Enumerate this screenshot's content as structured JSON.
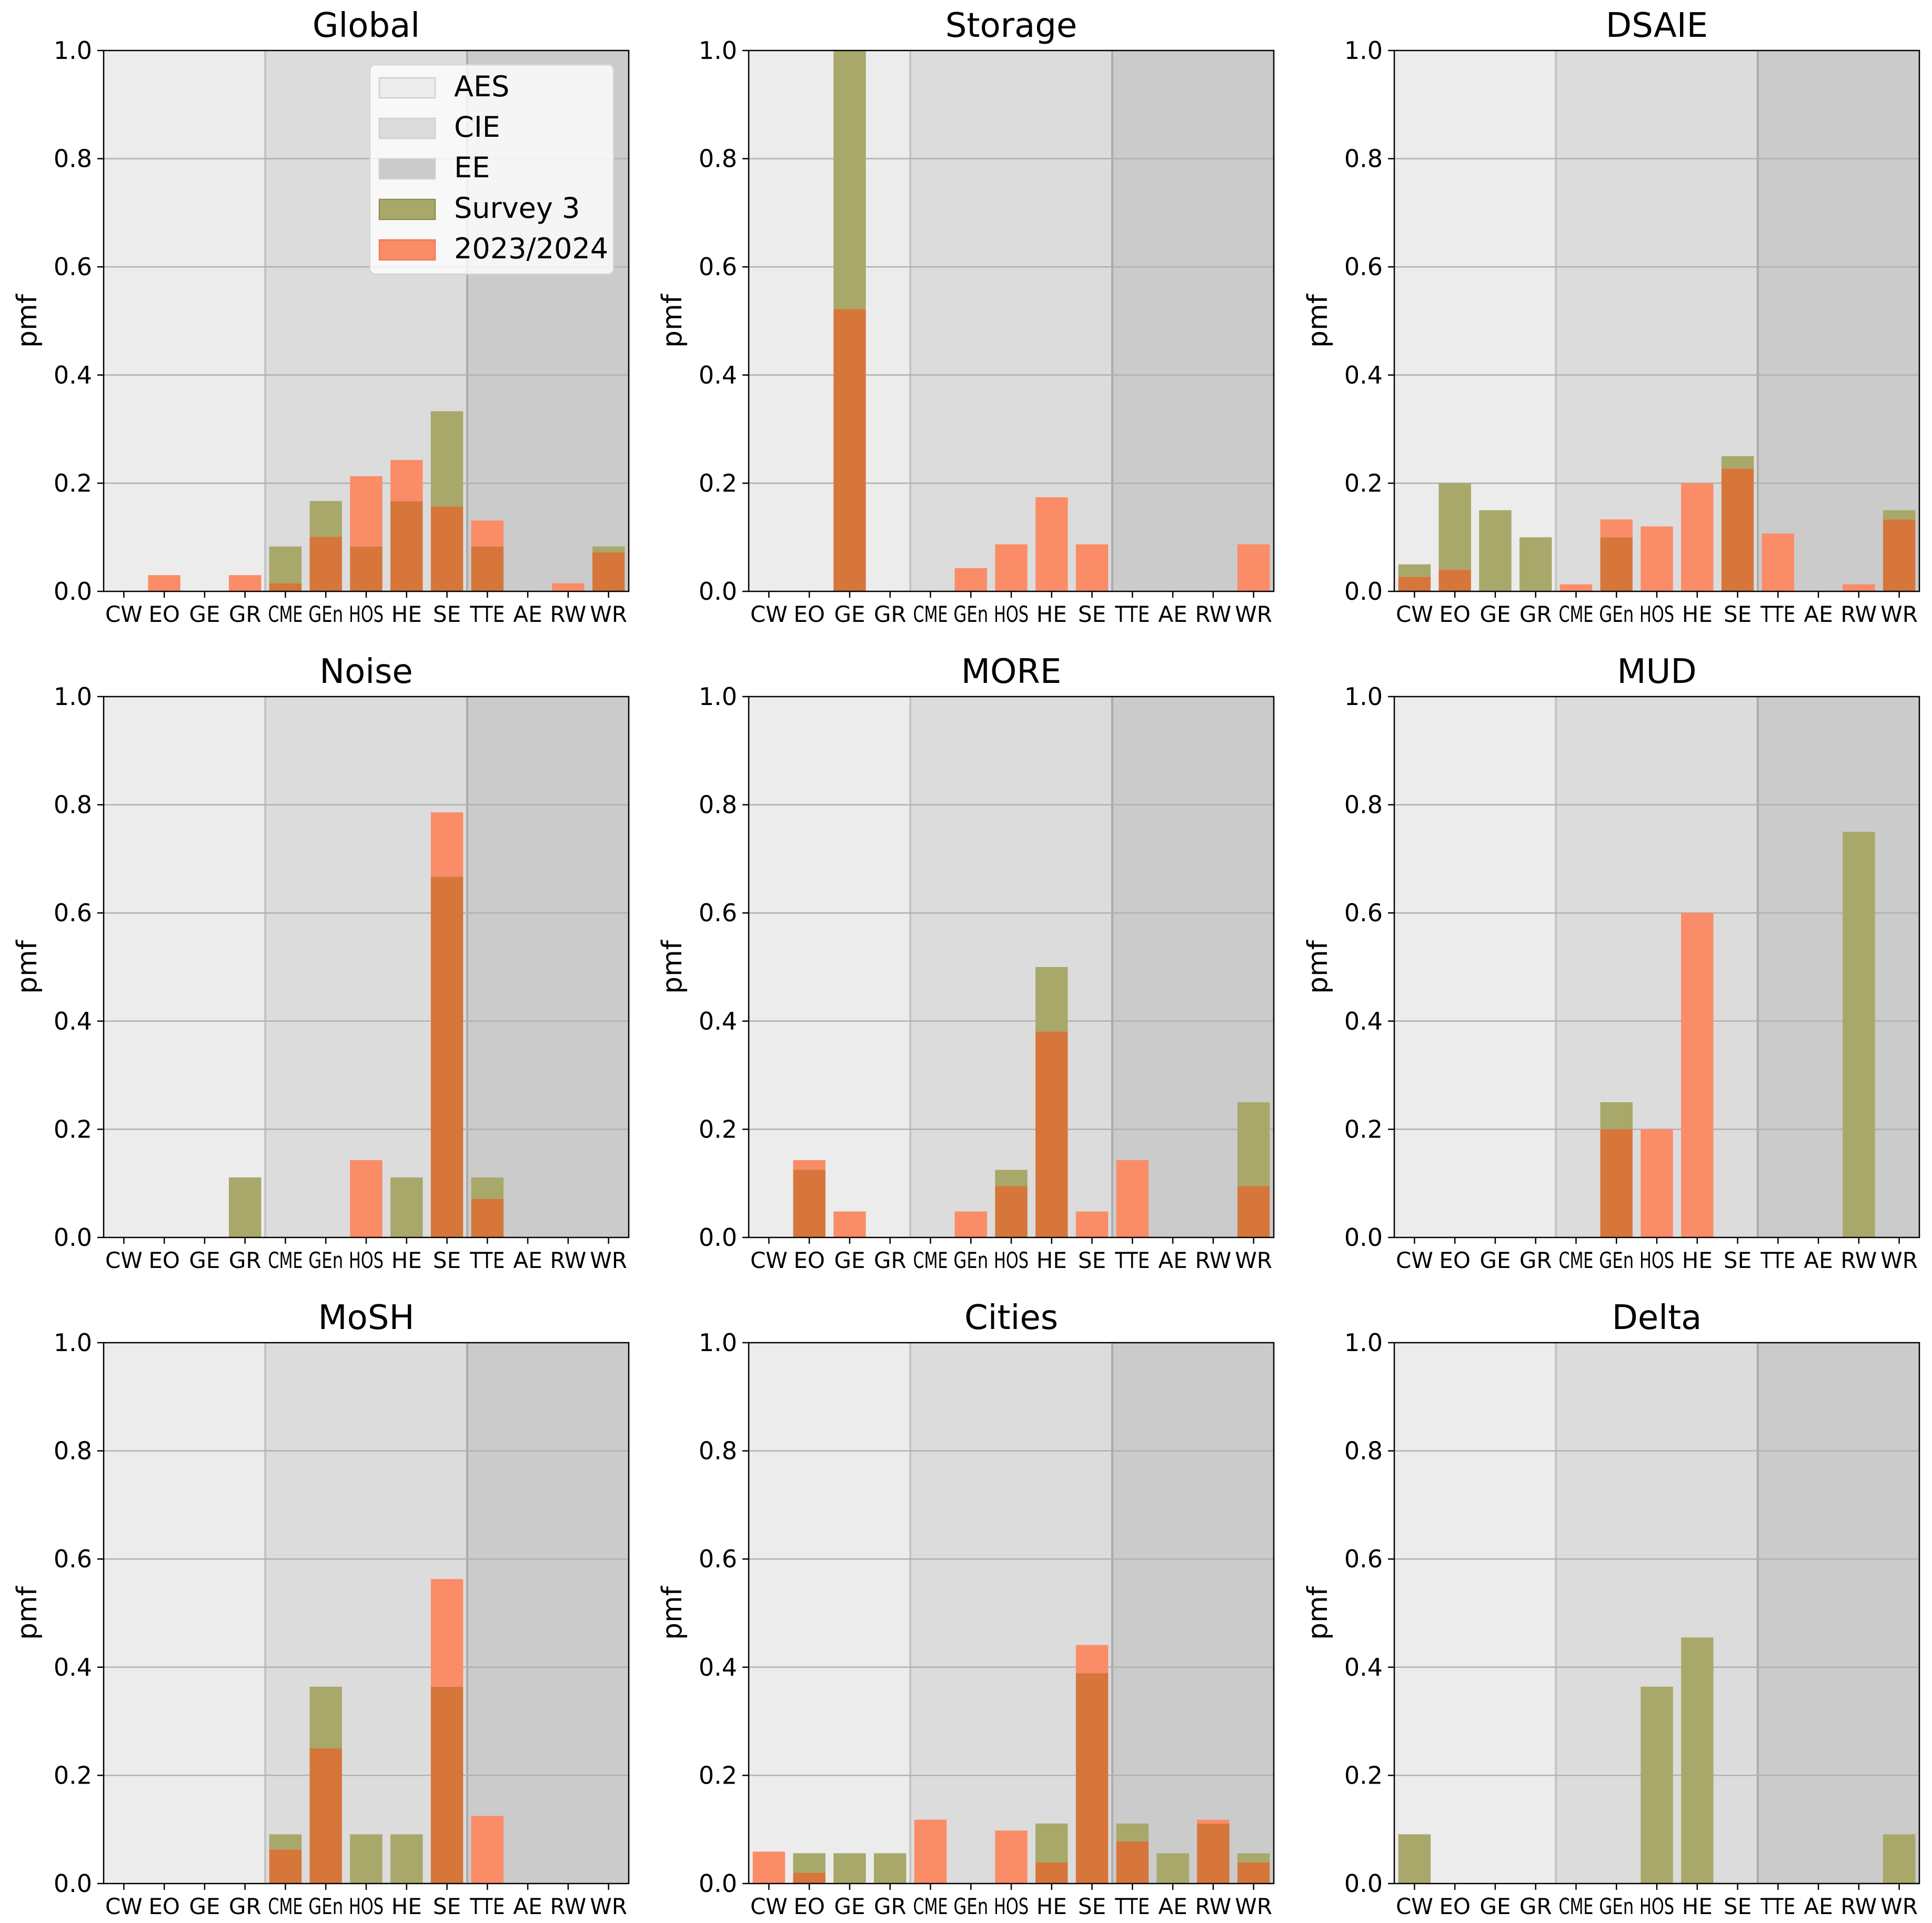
{
  "figure": {
    "ylabel": "pmf",
    "yticks": [
      "0.0",
      "0.2",
      "0.4",
      "0.6",
      "0.8",
      "1.0"
    ],
    "categories": [
      "CW",
      "EO",
      "GE",
      "GR",
      "CME",
      "GEn",
      "HOS",
      "HE",
      "SE",
      "TTE",
      "AE",
      "RW",
      "WR"
    ],
    "groups": [
      {
        "name": "AES",
        "color": "#ececec"
      },
      {
        "name": "CIE",
        "color": "#dcdcdc"
      },
      {
        "name": "EE",
        "color": "#cbcbcb"
      }
    ],
    "series_colors": {
      "Survey 3": "#a8a86a",
      "2023/2024": "#fb8c68",
      "overlap": "#d6763b"
    },
    "legend": {
      "placement": "upper right of Global panel",
      "entries": [
        "AES",
        "CIE",
        "EE",
        "Survey 3",
        "2023/2024"
      ]
    }
  },
  "chart_data": [
    {
      "type": "bar",
      "title": "Global",
      "ylabel": "pmf",
      "ylim": [
        0,
        1
      ],
      "categories": [
        "CW",
        "EO",
        "GE",
        "GR",
        "CME",
        "GEn",
        "HOS",
        "HE",
        "SE",
        "TTE",
        "AE",
        "RW",
        "WR"
      ],
      "series": [
        {
          "name": "Survey 3",
          "values": [
            0,
            0,
            0,
            0,
            0.083,
            0.167,
            0.083,
            0.167,
            0.333,
            0.083,
            0,
            0,
            0.083
          ]
        },
        {
          "name": "2023/2024",
          "values": [
            0,
            0.03,
            0,
            0.03,
            0.015,
            0.101,
            0.213,
            0.243,
            0.157,
            0.131,
            0,
            0.015,
            0.072
          ]
        }
      ]
    },
    {
      "type": "bar",
      "title": "Storage",
      "ylabel": "pmf",
      "ylim": [
        0,
        1
      ],
      "categories": [
        "CW",
        "EO",
        "GE",
        "GR",
        "CME",
        "GEn",
        "HOS",
        "HE",
        "SE",
        "TTE",
        "AE",
        "RW",
        "WR"
      ],
      "series": [
        {
          "name": "Survey 3",
          "values": [
            0,
            0,
            1.0,
            0,
            0,
            0,
            0,
            0,
            0,
            0,
            0,
            0,
            0
          ]
        },
        {
          "name": "2023/2024",
          "values": [
            0,
            0,
            0.522,
            0,
            0,
            0.043,
            0.087,
            0.174,
            0.087,
            0,
            0,
            0,
            0.087
          ]
        }
      ]
    },
    {
      "type": "bar",
      "title": "DSAIE",
      "ylabel": "pmf",
      "ylim": [
        0,
        1
      ],
      "categories": [
        "CW",
        "EO",
        "GE",
        "GR",
        "CME",
        "GEn",
        "HOS",
        "HE",
        "SE",
        "TTE",
        "AE",
        "RW",
        "WR"
      ],
      "series": [
        {
          "name": "Survey 3",
          "values": [
            0.05,
            0.2,
            0.15,
            0.1,
            0,
            0.1,
            0,
            0,
            0.25,
            0,
            0,
            0,
            0.15
          ]
        },
        {
          "name": "2023/2024",
          "values": [
            0.027,
            0.04,
            0,
            0,
            0.013,
            0.133,
            0.12,
            0.2,
            0.227,
            0.107,
            0,
            0.013,
            0.133
          ]
        }
      ]
    },
    {
      "type": "bar",
      "title": "Noise",
      "ylabel": "pmf",
      "ylim": [
        0,
        1
      ],
      "categories": [
        "CW",
        "EO",
        "GE",
        "GR",
        "CME",
        "GEn",
        "HOS",
        "HE",
        "SE",
        "TTE",
        "AE",
        "RW",
        "WR"
      ],
      "series": [
        {
          "name": "Survey 3",
          "values": [
            0,
            0,
            0,
            0.111,
            0,
            0,
            0,
            0.111,
            0.667,
            0.111,
            0,
            0,
            0
          ]
        },
        {
          "name": "2023/2024",
          "values": [
            0,
            0,
            0,
            0,
            0,
            0,
            0.143,
            0,
            0.786,
            0.071,
            0,
            0,
            0
          ]
        }
      ]
    },
    {
      "type": "bar",
      "title": "MORE",
      "ylabel": "pmf",
      "ylim": [
        0,
        1
      ],
      "categories": [
        "CW",
        "EO",
        "GE",
        "GR",
        "CME",
        "GEn",
        "HOS",
        "HE",
        "SE",
        "TTE",
        "AE",
        "RW",
        "WR"
      ],
      "series": [
        {
          "name": "Survey 3",
          "values": [
            0,
            0.125,
            0,
            0,
            0,
            0,
            0.125,
            0.5,
            0,
            0,
            0,
            0,
            0.25
          ]
        },
        {
          "name": "2023/2024",
          "values": [
            0,
            0.143,
            0.048,
            0,
            0,
            0.048,
            0.095,
            0.381,
            0.048,
            0.143,
            0,
            0,
            0.095
          ]
        }
      ]
    },
    {
      "type": "bar",
      "title": "MUD",
      "ylabel": "pmf",
      "ylim": [
        0,
        1
      ],
      "categories": [
        "CW",
        "EO",
        "GE",
        "GR",
        "CME",
        "GEn",
        "HOS",
        "HE",
        "SE",
        "TTE",
        "AE",
        "RW",
        "WR"
      ],
      "series": [
        {
          "name": "Survey 3",
          "values": [
            0,
            0,
            0,
            0,
            0,
            0.25,
            0,
            0,
            0,
            0,
            0,
            0.75,
            0
          ]
        },
        {
          "name": "2023/2024",
          "values": [
            0,
            0,
            0,
            0,
            0,
            0.2,
            0.2,
            0.6,
            0,
            0,
            0,
            0,
            0
          ]
        }
      ]
    },
    {
      "type": "bar",
      "title": "MoSH",
      "ylabel": "pmf",
      "ylim": [
        0,
        1
      ],
      "categories": [
        "CW",
        "EO",
        "GE",
        "GR",
        "CME",
        "GEn",
        "HOS",
        "HE",
        "SE",
        "TTE",
        "AE",
        "RW",
        "WR"
      ],
      "series": [
        {
          "name": "Survey 3",
          "values": [
            0,
            0,
            0,
            0,
            0.091,
            0.364,
            0.091,
            0.091,
            0.364,
            0,
            0,
            0,
            0
          ]
        },
        {
          "name": "2023/2024",
          "values": [
            0,
            0,
            0,
            0,
            0.063,
            0.25,
            0,
            0,
            0.563,
            0.125,
            0,
            0,
            0
          ]
        }
      ]
    },
    {
      "type": "bar",
      "title": "Cities",
      "ylabel": "pmf",
      "ylim": [
        0,
        1
      ],
      "categories": [
        "CW",
        "EO",
        "GE",
        "GR",
        "CME",
        "GEn",
        "HOS",
        "HE",
        "SE",
        "TTE",
        "AE",
        "RW",
        "WR"
      ],
      "series": [
        {
          "name": "Survey 3",
          "values": [
            0,
            0.056,
            0.056,
            0.056,
            0,
            0,
            0,
            0.111,
            0.389,
            0.111,
            0.056,
            0.111,
            0.056
          ]
        },
        {
          "name": "2023/2024",
          "values": [
            0.059,
            0.02,
            0,
            0,
            0.118,
            0,
            0.098,
            0.039,
            0.441,
            0.078,
            0,
            0.118,
            0.039
          ]
        }
      ]
    },
    {
      "type": "bar",
      "title": "Delta",
      "ylabel": "pmf",
      "ylim": [
        0,
        1
      ],
      "categories": [
        "CW",
        "EO",
        "GE",
        "GR",
        "CME",
        "GEn",
        "HOS",
        "HE",
        "SE",
        "TTE",
        "AE",
        "RW",
        "WR"
      ],
      "series": [
        {
          "name": "Survey 3",
          "values": [
            0.091,
            0,
            0,
            0,
            0,
            0,
            0.364,
            0.455,
            0,
            0,
            0,
            0,
            0.091
          ]
        },
        {
          "name": "2023/2024",
          "values": [
            0,
            0,
            0,
            0,
            0,
            0,
            0,
            0,
            0,
            0,
            0,
            0,
            0
          ]
        }
      ]
    }
  ]
}
